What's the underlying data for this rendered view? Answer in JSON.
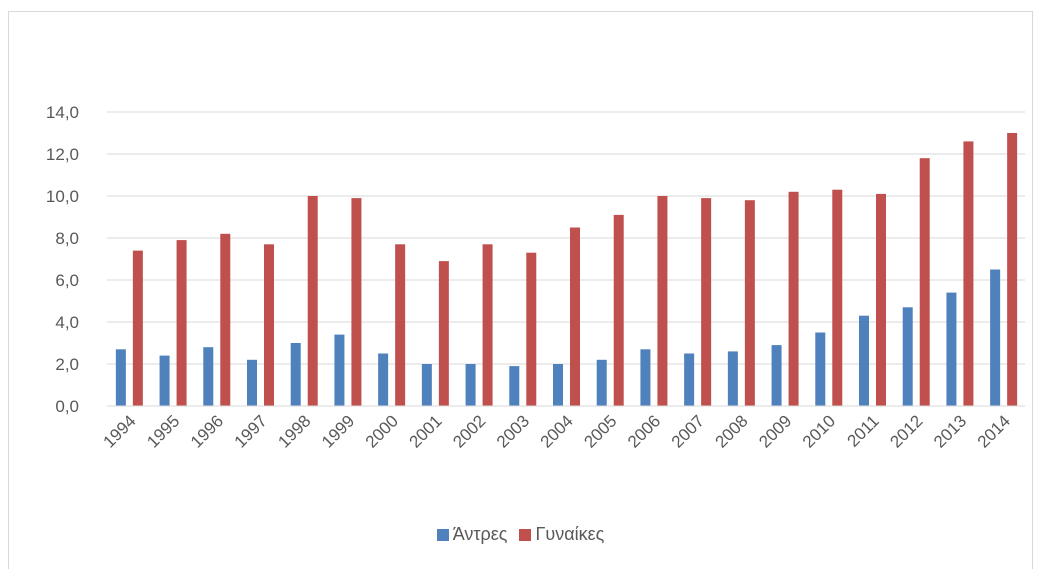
{
  "chart_data": {
    "type": "bar",
    "title": "",
    "xlabel": "",
    "ylabel": "",
    "ylim": [
      0,
      14
    ],
    "ytick_step": 2,
    "ytick_labels": [
      "0,0",
      "2,0",
      "4,0",
      "6,0",
      "8,0",
      "10,0",
      "12,0",
      "14,0"
    ],
    "grid": true,
    "legend_position": "bottom",
    "categories": [
      "1994",
      "1995",
      "1996",
      "1997",
      "1998",
      "1999",
      "2000",
      "2001",
      "2002",
      "2003",
      "2004",
      "2005",
      "2006",
      "2007",
      "2008",
      "2009",
      "2010",
      "2011",
      "2012",
      "2013",
      "2014"
    ],
    "series": [
      {
        "name": "Άντρες",
        "color": "#4f81bd",
        "values": [
          2.7,
          2.4,
          2.8,
          2.2,
          3.0,
          3.4,
          2.5,
          2.0,
          2.0,
          1.9,
          2.0,
          2.2,
          2.7,
          2.5,
          2.6,
          2.9,
          3.5,
          4.3,
          4.7,
          5.4,
          6.5
        ]
      },
      {
        "name": "Γυναίκες",
        "color": "#c0504d",
        "values": [
          7.4,
          7.9,
          8.2,
          7.7,
          10.0,
          9.9,
          7.7,
          6.9,
          7.7,
          7.3,
          8.5,
          9.1,
          10.0,
          9.9,
          9.8,
          10.2,
          10.3,
          10.1,
          11.8,
          12.6,
          13.0
        ]
      }
    ]
  }
}
